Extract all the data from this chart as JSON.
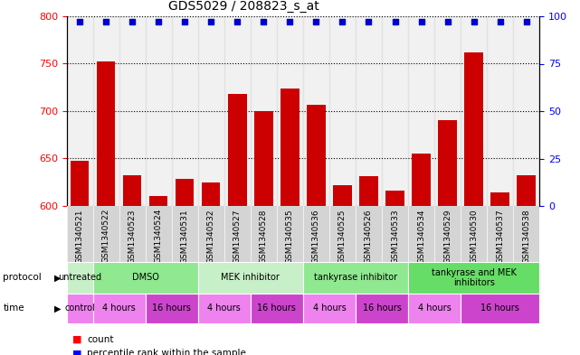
{
  "title": "GDS5029 / 208823_s_at",
  "samples": [
    "GSM1340521",
    "GSM1340522",
    "GSM1340523",
    "GSM1340524",
    "GSM1340531",
    "GSM1340532",
    "GSM1340527",
    "GSM1340528",
    "GSM1340535",
    "GSM1340536",
    "GSM1340525",
    "GSM1340526",
    "GSM1340533",
    "GSM1340534",
    "GSM1340529",
    "GSM1340530",
    "GSM1340537",
    "GSM1340538"
  ],
  "counts": [
    648,
    752,
    632,
    610,
    629,
    625,
    718,
    700,
    724,
    707,
    622,
    631,
    616,
    655,
    690,
    762,
    614,
    632
  ],
  "percentiles": [
    97,
    97,
    97,
    97,
    97,
    97,
    97,
    97,
    97,
    97,
    97,
    97,
    97,
    97,
    97,
    97,
    97,
    97
  ],
  "bar_color": "#cc0000",
  "dot_color": "#0000cc",
  "ylim_left": [
    600,
    800
  ],
  "ylim_right": [
    0,
    100
  ],
  "yticks_left": [
    600,
    650,
    700,
    750,
    800
  ],
  "yticks_right": [
    0,
    25,
    50,
    75,
    100
  ],
  "protocol_groups": [
    {
      "label": "untreated",
      "start": 0,
      "end": 1,
      "color": "#c8f0c8"
    },
    {
      "label": "DMSO",
      "start": 1,
      "end": 5,
      "color": "#90e890"
    },
    {
      "label": "MEK inhibitor",
      "start": 5,
      "end": 9,
      "color": "#c8f0c8"
    },
    {
      "label": "tankyrase inhibitor",
      "start": 9,
      "end": 13,
      "color": "#90e890"
    },
    {
      "label": "tankyrase and MEK\ninhibitors",
      "start": 13,
      "end": 18,
      "color": "#66dd66"
    }
  ],
  "time_groups": [
    {
      "label": "control",
      "start": 0,
      "end": 1,
      "color": "#ee82ee"
    },
    {
      "label": "4 hours",
      "start": 1,
      "end": 3,
      "color": "#ee82ee"
    },
    {
      "label": "16 hours",
      "start": 3,
      "end": 5,
      "color": "#cc44cc"
    },
    {
      "label": "4 hours",
      "start": 5,
      "end": 7,
      "color": "#ee82ee"
    },
    {
      "label": "16 hours",
      "start": 7,
      "end": 9,
      "color": "#cc44cc"
    },
    {
      "label": "4 hours",
      "start": 9,
      "end": 11,
      "color": "#ee82ee"
    },
    {
      "label": "16 hours",
      "start": 11,
      "end": 13,
      "color": "#cc44cc"
    },
    {
      "label": "4 hours",
      "start": 13,
      "end": 15,
      "color": "#ee82ee"
    },
    {
      "label": "16 hours",
      "start": 15,
      "end": 18,
      "color": "#cc44cc"
    }
  ],
  "chart_bg": "#ffffff",
  "sample_col_bg": "#d8d8d8"
}
